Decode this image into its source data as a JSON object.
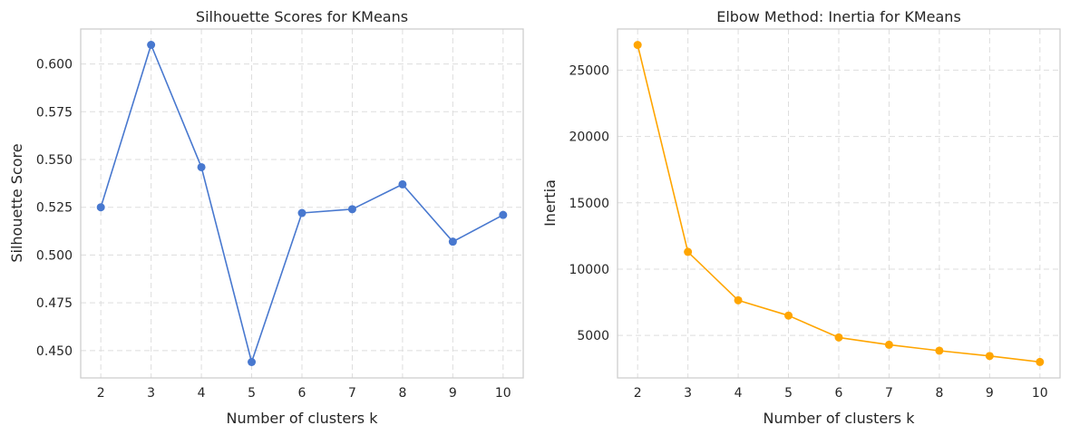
{
  "chart_data": [
    {
      "type": "line",
      "title": "Silhouette Scores for KMeans",
      "xlabel": "Number of clusters k",
      "ylabel": "Silhouette Score",
      "x": [
        2,
        3,
        4,
        5,
        6,
        7,
        8,
        9,
        10
      ],
      "series": [
        {
          "values": [
            0.525,
            0.61,
            0.546,
            0.444,
            0.522,
            0.524,
            0.537,
            0.507,
            0.521
          ],
          "color": "#4878cf"
        }
      ],
      "xticks": [
        2,
        3,
        4,
        5,
        6,
        7,
        8,
        9,
        10
      ],
      "yticks": [
        0.45,
        0.475,
        0.5,
        0.525,
        0.55,
        0.575,
        0.6
      ],
      "ytick_labels": [
        "0.450",
        "0.475",
        "0.500",
        "0.525",
        "0.550",
        "0.575",
        "0.600"
      ],
      "xlim": [
        1.6,
        10.4
      ],
      "ylim": [
        0.4357,
        0.6183
      ],
      "grid": true,
      "marker": "circle"
    },
    {
      "type": "line",
      "title": "Elbow Method: Inertia for KMeans",
      "xlabel": "Number of clusters k",
      "ylabel": "Inertia",
      "x": [
        2,
        3,
        4,
        5,
        6,
        7,
        8,
        9,
        10
      ],
      "series": [
        {
          "values": [
            26900,
            11300,
            7650,
            6500,
            4850,
            4300,
            3850,
            3450,
            3000
          ],
          "color": "#ffa500"
        }
      ],
      "xticks": [
        2,
        3,
        4,
        5,
        6,
        7,
        8,
        9,
        10
      ],
      "yticks": [
        5000,
        10000,
        15000,
        20000,
        25000
      ],
      "ytick_labels": [
        "5000",
        "10000",
        "15000",
        "20000",
        "25000"
      ],
      "xlim": [
        1.6,
        10.4
      ],
      "ylim": [
        1800,
        28100
      ],
      "grid": true,
      "marker": "circle"
    }
  ]
}
